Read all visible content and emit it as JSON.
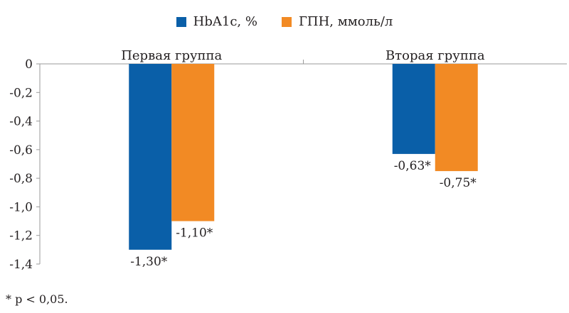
{
  "chart_data": {
    "type": "bar",
    "categories": [
      "Первая группа",
      "Вторая группа"
    ],
    "series": [
      {
        "name": "HbA1c, %",
        "values": [
          -1.3,
          -0.63
        ],
        "labels": [
          "-1,30*",
          "-0,63*"
        ],
        "color": "#0a5fa8"
      },
      {
        "name": "ГПН, ммоль/л",
        "values": [
          -1.1,
          -0.75
        ],
        "labels": [
          "-1,10*",
          "-0,75*"
        ],
        "color": "#f28a24"
      }
    ],
    "ylim": [
      -1.4,
      0
    ],
    "yticks": [
      0,
      -0.2,
      -0.4,
      -0.6,
      -0.8,
      -1.0,
      -1.2,
      -1.4
    ],
    "ytick_labels": [
      "0",
      "-0,2",
      "-0,4",
      "-0,6",
      "-0,8",
      "-1,0",
      "-1,2",
      "-1,4"
    ],
    "legend_position": "top",
    "grid": false
  },
  "footnote": "* p < 0,05."
}
